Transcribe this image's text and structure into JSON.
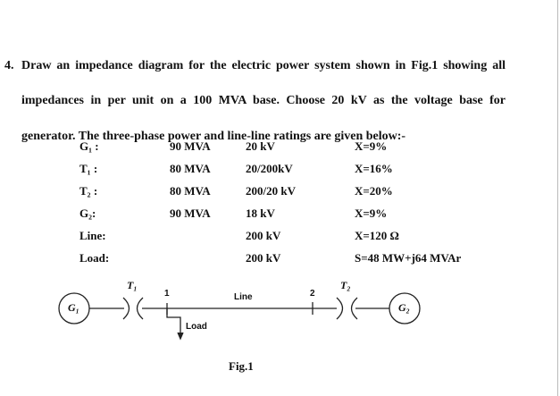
{
  "question": {
    "number": "4.",
    "lines": [
      "Draw an impedance diagram for the electric power system shown in Fig.1 showing all",
      "impedances in per unit on a 100 MVA base. Choose 20 kV as the voltage base for",
      "generator. The three-phase power and line-line ratings are given below:-"
    ]
  },
  "ratings": [
    {
      "name": "G₁ :",
      "power": "90 MVA",
      "voltage": "20 kV",
      "value": "X=9%"
    },
    {
      "name": "T₁ :",
      "power": "80 MVA",
      "voltage": "20/200kV",
      "value": "X=16%"
    },
    {
      "name": "T₂ :",
      "power": "80 MVA",
      "voltage": "200/20 kV",
      "value": "X=20%"
    },
    {
      "name": "G₂:",
      "power": "90 MVA",
      "voltage": "18 kV",
      "value": "X=9%"
    },
    {
      "name": "Line:",
      "power": "",
      "voltage": "200 kV",
      "value": "X=120 Ω"
    },
    {
      "name": "Load:",
      "power": "",
      "voltage": "200 kV",
      "value": "S=48 MW+j64 MVAr"
    }
  ],
  "diagram": {
    "g1": "G₁",
    "g2": "G₂",
    "t1": "T₁",
    "t2": "T₂",
    "bus1": "1",
    "bus2": "2",
    "line": "Line",
    "load": "Load",
    "caption": "Fig.1"
  }
}
